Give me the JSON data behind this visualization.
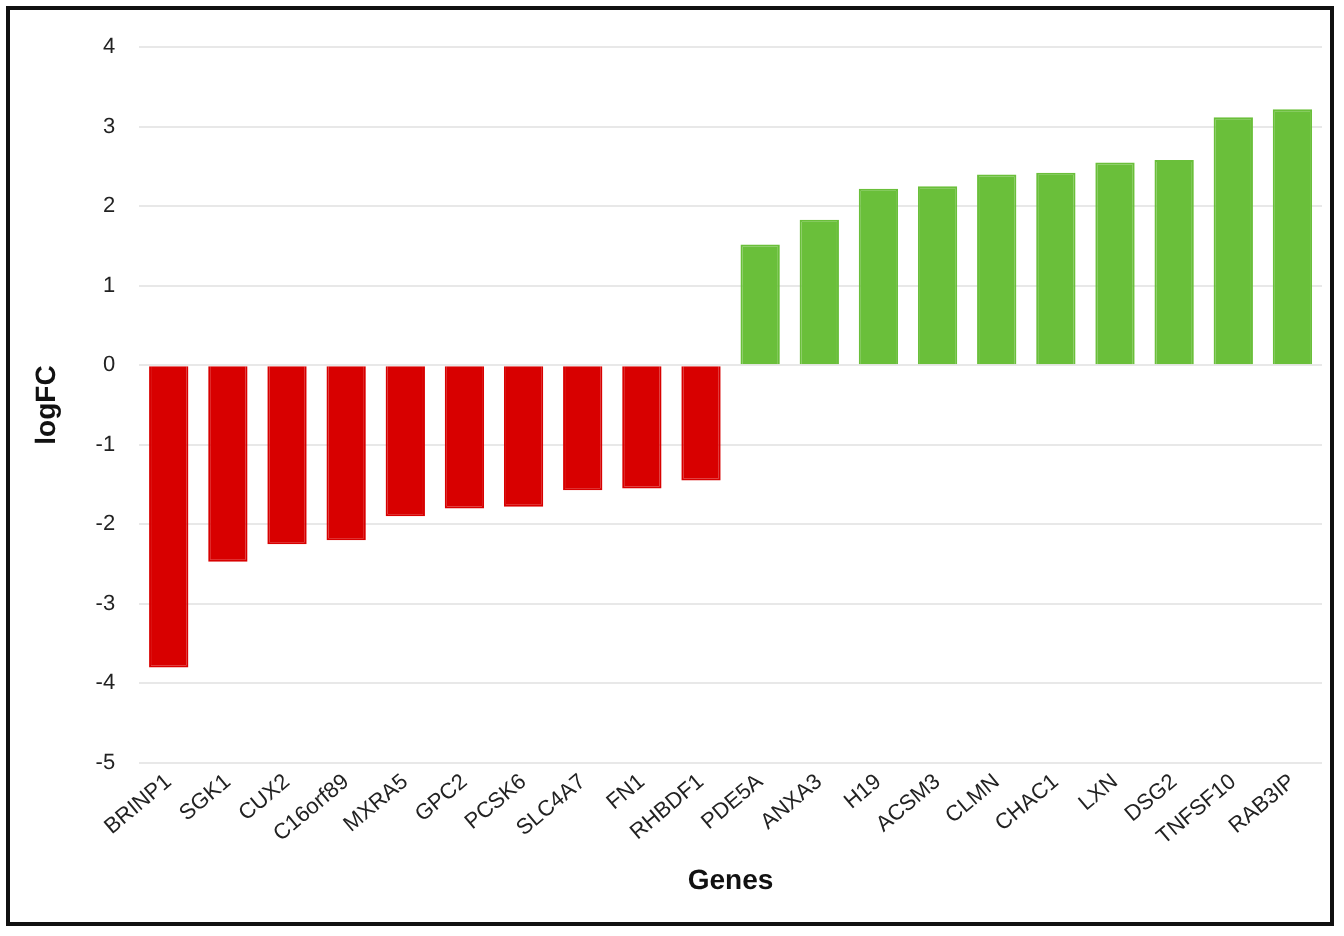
{
  "chart_data": {
    "type": "bar",
    "xlabel": "Genes",
    "ylabel": "logFC",
    "categories": [
      "BRINP1",
      "SGK1",
      "CUX2",
      "C16orf89",
      "MXRA5",
      "GPC2",
      "PCSK6",
      "SLC4A7",
      "FN1",
      "RHBDF1",
      "PDE5A",
      "ANXA3",
      "H19",
      "ACSM3",
      "CLMN",
      "CHAC1",
      "LXN",
      "DSG2",
      "TNFSF10",
      "RAB3IP"
    ],
    "values": [
      -3.8,
      -2.47,
      -2.25,
      -2.2,
      -1.9,
      -1.8,
      -1.78,
      -1.57,
      -1.55,
      -1.45,
      1.52,
      1.83,
      2.22,
      2.25,
      2.4,
      2.42,
      2.55,
      2.58,
      3.12,
      3.22
    ],
    "colors": [
      "#d80000",
      "#d80000",
      "#d80000",
      "#d80000",
      "#d80000",
      "#d80000",
      "#d80000",
      "#d80000",
      "#d80000",
      "#d80000",
      "#6abf3a",
      "#6abf3a",
      "#6abf3a",
      "#6abf3a",
      "#6abf3a",
      "#6abf3a",
      "#6abf3a",
      "#6abf3a",
      "#6abf3a",
      "#6abf3a"
    ],
    "ylim": [
      -5,
      4
    ],
    "yticks": [
      -5,
      -4,
      -3,
      -2,
      -1,
      0,
      1,
      2,
      3,
      4
    ],
    "grid": "y",
    "legend": false
  }
}
